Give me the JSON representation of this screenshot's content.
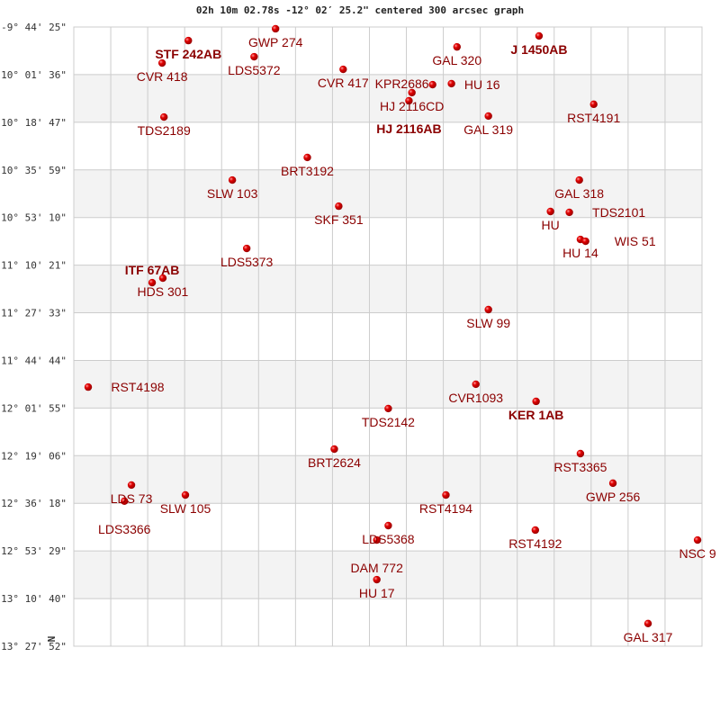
{
  "title": "02h 10m 02.78s -12° 02′ 25.2\" centered 300 arcsec graph",
  "north_label": "N",
  "colors": {
    "star": "#e00000",
    "label": "#8b0000",
    "band": "#f3f3f3",
    "grid": "#cccccc"
  },
  "chart_data": {
    "type": "scatter",
    "title": "02h 10m 02.78s -12° 02′ 25.2\" centered 300 arcsec graph",
    "y_tick_labels": [
      "-9° 44' 25\"",
      "-10° 01' 36\"",
      "-10° 18' 47\"",
      "-10° 35' 59\"",
      "-10° 53' 10\"",
      "-11° 10' 21\"",
      "-11° 27' 33\"",
      "-11° 44' 44\"",
      "-12° 01' 55\"",
      "-12° 19' 06\"",
      "-12° 36' 18\"",
      "-12° 53' 29\"",
      "-13° 10' 40\"",
      "-13° 27' 52\""
    ],
    "ylim_deg": [
      -13.4644,
      -9.7403
    ],
    "x_unit": "grid columns (unlabeled)",
    "xlim": [
      0,
      17
    ],
    "grid": true,
    "points": [
      {
        "name": "STF 242AB",
        "x": 3.1,
        "dec": -9.822,
        "bold": true
      },
      {
        "name": "GWP 274",
        "x": 5.46,
        "dec": -9.751
      },
      {
        "name": "CVR 418",
        "x": 2.39,
        "dec": -9.957
      },
      {
        "name": "LDS5372",
        "x": 4.88,
        "dec": -9.919
      },
      {
        "name": "GAL 320",
        "x": 10.37,
        "dec": -9.86
      },
      {
        "name": "J  1450AB",
        "x": 12.59,
        "dec": -9.794,
        "bold": true
      },
      {
        "name": "CVR 417",
        "x": 7.29,
        "dec": -9.995
      },
      {
        "name": "HJ 2116CD",
        "x": 9.15,
        "dec": -10.135
      },
      {
        "name": "HJ 2116AB",
        "x": 9.07,
        "dec": -10.184,
        "bold": true
      },
      {
        "name": "HU  16",
        "x": 9.71,
        "dec": -10.087
      },
      {
        "name": "KPR2686",
        "x": 10.22,
        "dec": -10.081
      },
      {
        "name": "GAL 319",
        "x": 11.22,
        "dec": -10.276
      },
      {
        "name": "RST4191",
        "x": 14.07,
        "dec": -10.205
      },
      {
        "name": "TDS2189",
        "x": 2.44,
        "dec": -10.282
      },
      {
        "name": "BRT3192",
        "x": 6.32,
        "dec": -10.525
      },
      {
        "name": "SLW 103",
        "x": 4.29,
        "dec": -10.661
      },
      {
        "name": "GAL 318",
        "x": 13.68,
        "dec": -10.661
      },
      {
        "name": "SKF 351",
        "x": 7.17,
        "dec": -10.818
      },
      {
        "name": "HU",
        "x": 12.9,
        "dec": -10.85
      },
      {
        "name": "TDS2101",
        "x": 13.41,
        "dec": -10.855
      },
      {
        "name": "HU  14",
        "x": 13.71,
        "dec": -11.018
      },
      {
        "name": "WIS  51",
        "x": 13.85,
        "dec": -11.029
      },
      {
        "name": "LDS5373",
        "x": 4.68,
        "dec": -11.072
      },
      {
        "name": "HDS 301",
        "x": 2.41,
        "dec": -11.251
      },
      {
        "name": "ITF  67AB",
        "x": 2.12,
        "dec": -11.278,
        "bold": true
      },
      {
        "name": "SLW  99",
        "x": 11.22,
        "dec": -11.44
      },
      {
        "name": "RST4198",
        "x": 0.39,
        "dec": -11.906
      },
      {
        "name": "CVR1093",
        "x": 10.88,
        "dec": -11.889
      },
      {
        "name": "KER   1AB",
        "x": 12.51,
        "dec": -11.992,
        "bold": true
      },
      {
        "name": "TDS2142",
        "x": 8.51,
        "dec": -12.035
      },
      {
        "name": "BRT2624",
        "x": 7.05,
        "dec": -12.279
      },
      {
        "name": "RST3365",
        "x": 13.71,
        "dec": -12.306
      },
      {
        "name": "GWP 256",
        "x": 14.59,
        "dec": -12.484
      },
      {
        "name": "LDS  73",
        "x": 1.56,
        "dec": -12.495
      },
      {
        "name": "LDS3366",
        "x": 1.37,
        "dec": -12.592
      },
      {
        "name": "SLW 105",
        "x": 3.02,
        "dec": -12.555
      },
      {
        "name": "RST4194",
        "x": 10.07,
        "dec": -12.555
      },
      {
        "name": "LDS5368",
        "x": 8.51,
        "dec": -12.739
      },
      {
        "name": "DAM 772",
        "x": 8.2,
        "dec": -12.826
      },
      {
        "name": "RST4192",
        "x": 12.49,
        "dec": -12.766
      },
      {
        "name": "NSC   9",
        "x": 16.88,
        "dec": -12.826
      },
      {
        "name": "HU   17",
        "x": 8.2,
        "dec": -13.064
      },
      {
        "name": "GAL 317",
        "x": 15.54,
        "dec": -13.328
      }
    ]
  }
}
